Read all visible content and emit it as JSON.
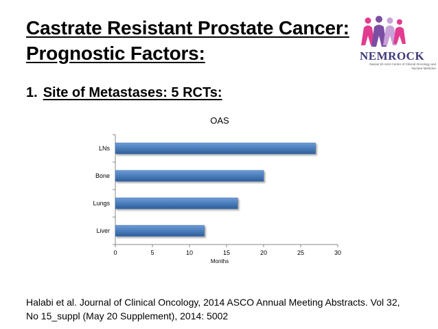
{
  "slide": {
    "title_line1": "Castrate Resistant Prostate Cancer:",
    "title_line2": "Prognostic Factors:",
    "bullet_number": "1.",
    "bullet_text": "Site of Metastases: 5 RCTs:",
    "citation": "Halabi et al. Journal of Clinical Oncology, 2014 ASCO Annual Meeting Abstracts. Vol 32, No 15_suppl (May 20 Supplement), 2014: 5002"
  },
  "logo": {
    "name": "NEMROCK",
    "subtitle": "Nasser El-Amir Center of Clinical Oncology and Nuclear Medicine",
    "colors": [
      "#e23b8f",
      "#7c4ea3",
      "#3f3a7a",
      "#c8a2d8"
    ]
  },
  "chart_data": {
    "type": "bar",
    "orientation": "horizontal",
    "title": "OAS",
    "xlabel": "Months",
    "ylabel": "",
    "categories": [
      "Liver",
      "Lungs",
      "Bone",
      "LNs"
    ],
    "values": [
      12,
      16.5,
      20,
      27
    ],
    "xlim": [
      0,
      30
    ],
    "xticks": [
      0,
      5,
      10,
      15,
      20,
      25,
      30
    ],
    "grid": false,
    "legend": "none",
    "bar_color": "#4a7ebb"
  }
}
